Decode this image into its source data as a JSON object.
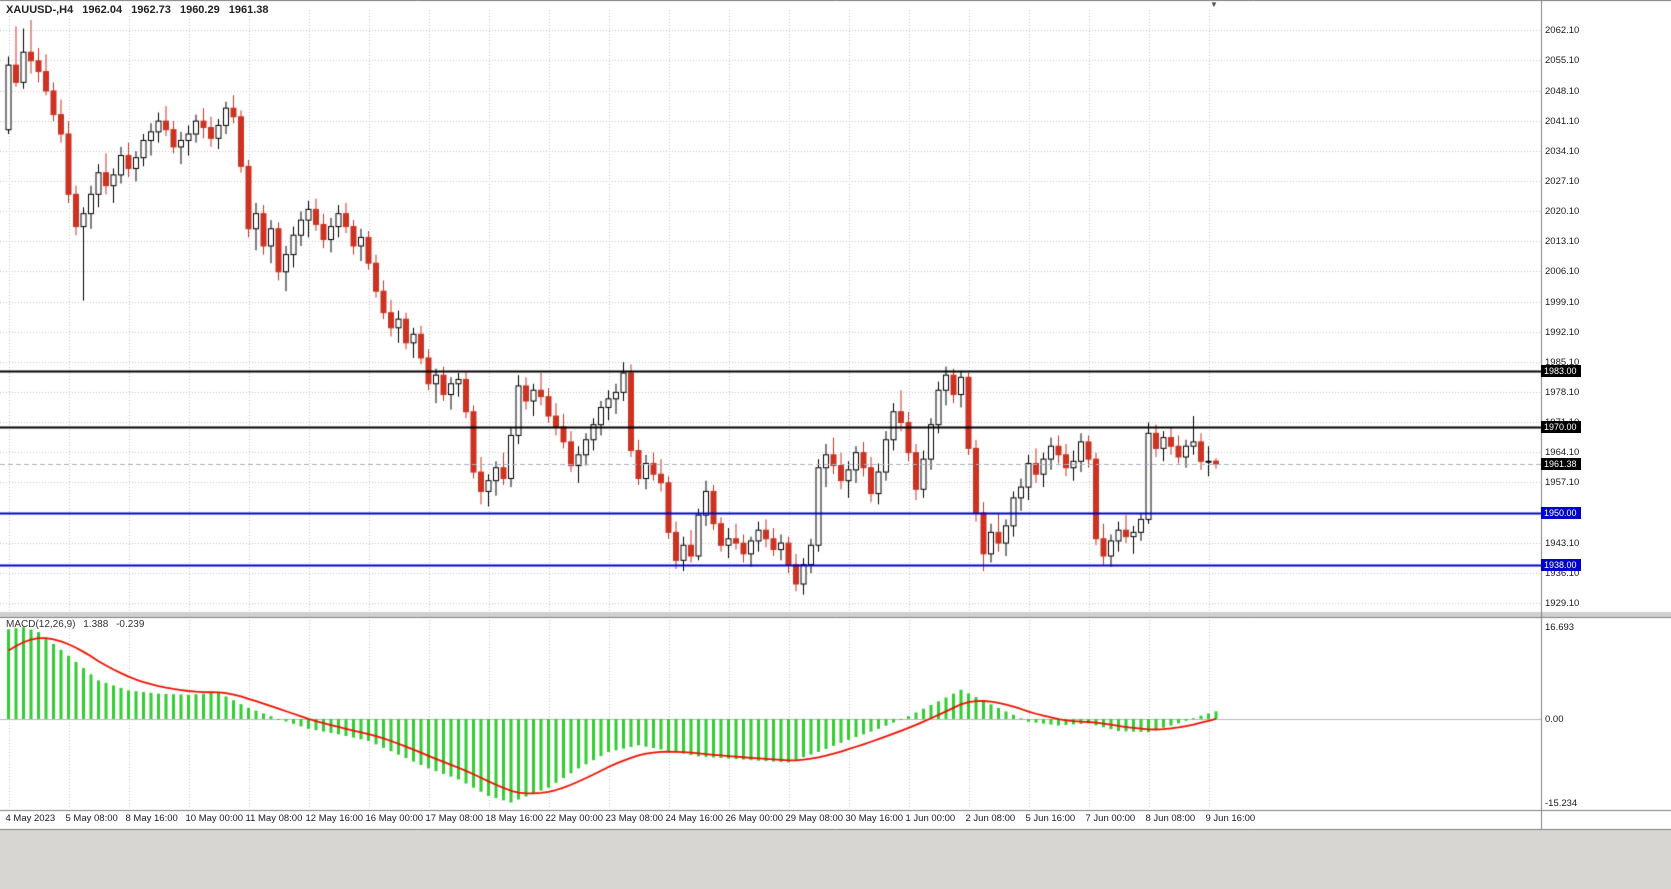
{
  "header": {
    "symbol_period": "XAUUSD-,H4",
    "open": "1962.04",
    "high": "1962.73",
    "low": "1960.29",
    "close": "1961.38"
  },
  "icons": {
    "shift_marker": "▼"
  },
  "price_axis": {
    "ticks": [
      2062.1,
      2055.1,
      2048.1,
      2041.1,
      2034.1,
      2027.1,
      2020.1,
      2013.1,
      2006.1,
      1999.1,
      1992.1,
      1985.1,
      1978.1,
      1971.1,
      1964.1,
      1957.1,
      1950.1,
      1943.1,
      1936.1,
      1929.1
    ]
  },
  "time_axis": {
    "labels": [
      {
        "text": "4 May 2023",
        "bar": 0
      },
      {
        "text": "5 May 08:00",
        "bar": 8
      },
      {
        "text": "8 May 16:00",
        "bar": 16
      },
      {
        "text": "10 May 00:00",
        "bar": 24
      },
      {
        "text": "11 May 08:00",
        "bar": 32
      },
      {
        "text": "12 May 16:00",
        "bar": 40
      },
      {
        "text": "16 May 00:00",
        "bar": 48
      },
      {
        "text": "17 May 08:00",
        "bar": 56
      },
      {
        "text": "18 May 16:00",
        "bar": 64
      },
      {
        "text": "22 May 00:00",
        "bar": 72
      },
      {
        "text": "23 May 08:00",
        "bar": 80
      },
      {
        "text": "24 May 16:00",
        "bar": 88
      },
      {
        "text": "26 May 00:00",
        "bar": 96
      },
      {
        "text": "29 May 08:00",
        "bar": 104
      },
      {
        "text": "30 May 16:00",
        "bar": 112
      },
      {
        "text": "1 Jun 00:00",
        "bar": 120
      },
      {
        "text": "2 Jun 08:00",
        "bar": 128
      },
      {
        "text": "5 Jun 16:00",
        "bar": 136
      },
      {
        "text": "7 Jun 00:00",
        "bar": 144
      },
      {
        "text": "8 Jun 08:00",
        "bar": 152
      },
      {
        "text": "9 Jun 16:00",
        "bar": 160
      }
    ]
  },
  "levels": [
    {
      "name": "resistance-line-1983",
      "price": 1983.0,
      "label": "1983.00",
      "color": "#000000",
      "badge_color": "#000000",
      "width": 2,
      "style": "solid"
    },
    {
      "name": "resistance-line-1970",
      "price": 1970.0,
      "label": "1970.00",
      "color": "#000000",
      "badge_color": "#000000",
      "width": 2,
      "style": "solid"
    },
    {
      "name": "bid-price-line",
      "price": 1961.38,
      "label": "1961.38",
      "color": "#a9b0c3",
      "badge_color": "#000000",
      "width": 1,
      "style": "dash"
    },
    {
      "name": "support-line-1950",
      "price": 1950.0,
      "label": "1950.00",
      "color": "#0000cc",
      "badge_color": "#0000cc",
      "width": 2,
      "style": "solid"
    },
    {
      "name": "support-line-1938",
      "price": 1938.0,
      "label": "1938.00",
      "color": "#0000cc",
      "badge_color": "#0000cc",
      "width": 2,
      "style": "solid"
    }
  ],
  "indicator": {
    "name": "MACD(12,26,9)",
    "macd_value": "1.388",
    "signal_value": "-0.239",
    "axis_ticks": [
      {
        "label": "16.693",
        "value": 16.693
      },
      {
        "label": "0.00",
        "value": 0
      },
      {
        "label": "-15.234",
        "value": -15.234
      }
    ],
    "signal_seed": 11.5,
    "signal_k": 0.2
  },
  "colors": {
    "background": "#ffffff",
    "grid": "#c6c6c6",
    "bull_body": "#ffffff",
    "bull_border": "#000000",
    "bear": "#cc3322",
    "histogram": "#33cc33",
    "signal_line": "#ee1100",
    "axis_text": "#1a1a1a",
    "frame": "#808080",
    "separator": "#d0d0d0",
    "bottom_strip": "#d8d6d2"
  },
  "chart_data": {
    "type": "candlestick",
    "symbol": "XAUUSD-",
    "timeframe": "H4",
    "price_range": [
      1927.0,
      2066.8
    ],
    "macd_range": [
      -16.2,
      18.0
    ],
    "candles": [
      [
        2039,
        2056,
        2038,
        2054
      ],
      [
        2054,
        2063,
        2049,
        2050
      ],
      [
        2050,
        2062.5,
        2048.5,
        2057
      ],
      [
        2057,
        2064.5,
        2052,
        2055
      ],
      [
        2055,
        2058,
        2050,
        2052.5
      ],
      [
        2052.5,
        2056.5,
        2047,
        2048
      ],
      [
        2048,
        2050,
        2041,
        2042.5
      ],
      [
        2042.5,
        2046,
        2036,
        2038
      ],
      [
        2038,
        2041,
        2022,
        2024
      ],
      [
        2024,
        2026,
        2014.5,
        2016.5
      ],
      [
        2016.5,
        2021,
        1999.3,
        2019.5
      ],
      [
        2019.5,
        2026,
        2016,
        2024
      ],
      [
        2024,
        2031,
        2021,
        2029
      ],
      [
        2029,
        2033.5,
        2024,
        2026
      ],
      [
        2026,
        2030,
        2022,
        2028.5
      ],
      [
        2028.5,
        2035,
        2026.5,
        2033
      ],
      [
        2033,
        2036,
        2028,
        2030
      ],
      [
        2030,
        2034,
        2027,
        2032.5
      ],
      [
        2032.5,
        2038,
        2030.5,
        2036.5
      ],
      [
        2036.5,
        2040.5,
        2033,
        2038.5
      ],
      [
        2038.5,
        2043,
        2036,
        2041
      ],
      [
        2041,
        2044.5,
        2037.5,
        2039
      ],
      [
        2039,
        2041,
        2033.5,
        2035
      ],
      [
        2035,
        2038.5,
        2031,
        2036.5
      ],
      [
        2036.5,
        2040,
        2033,
        2038
      ],
      [
        2038,
        2042.5,
        2036,
        2041
      ],
      [
        2041,
        2044,
        2037,
        2039.5
      ],
      [
        2039.5,
        2042,
        2035,
        2037
      ],
      [
        2037,
        2041.5,
        2034.5,
        2040
      ],
      [
        2040,
        2045.5,
        2038,
        2044
      ],
      [
        2044,
        2047,
        2040.5,
        2042
      ],
      [
        2042,
        2043.5,
        2029,
        2030.5
      ],
      [
        2030.5,
        2032,
        2014,
        2016
      ],
      [
        2016,
        2022,
        2011,
        2019.5
      ],
      [
        2019.5,
        2021.5,
        2010,
        2012
      ],
      [
        2012,
        2018,
        2008,
        2016
      ],
      [
        2016,
        2017.5,
        2004,
        2006
      ],
      [
        2006,
        2012,
        2001.5,
        2010
      ],
      [
        2010,
        2016.5,
        2007,
        2014.5
      ],
      [
        2014.5,
        2020,
        2012,
        2018
      ],
      [
        2018,
        2022.5,
        2014,
        2020.5
      ],
      [
        2020.5,
        2023,
        2015.5,
        2017
      ],
      [
        2017,
        2019.5,
        2011.5,
        2013.5
      ],
      [
        2013.5,
        2018.5,
        2010.5,
        2016.5
      ],
      [
        2016.5,
        2021.5,
        2014,
        2019.5
      ],
      [
        2019.5,
        2022,
        2015,
        2016.5
      ],
      [
        2016.5,
        2018,
        2010,
        2012
      ],
      [
        2012,
        2016,
        2008.5,
        2014
      ],
      [
        2014,
        2015.5,
        2006.5,
        2008
      ],
      [
        2008,
        2010,
        2000,
        2001.5
      ],
      [
        2001.5,
        2004,
        1995,
        1996.5
      ],
      [
        1996.5,
        1999.5,
        1991,
        1993
      ],
      [
        1993,
        1997,
        1989.5,
        1995
      ],
      [
        1995,
        1996.5,
        1988,
        1989.5
      ],
      [
        1989.5,
        1993,
        1986,
        1991.5
      ],
      [
        1991.5,
        1993.5,
        1984.5,
        1986
      ],
      [
        1986,
        1988,
        1978.5,
        1980
      ],
      [
        1980,
        1983.5,
        1975.5,
        1982
      ],
      [
        1982,
        1984,
        1976,
        1977.5
      ],
      [
        1977.5,
        1981.5,
        1974,
        1980
      ],
      [
        1980,
        1982.5,
        1977,
        1981
      ],
      [
        1981,
        1983,
        1972,
        1973.5
      ],
      [
        1973.5,
        1975,
        1958,
        1959.5
      ],
      [
        1959.5,
        1963,
        1952,
        1955
      ],
      [
        1955,
        1959,
        1951.5,
        1957.5
      ],
      [
        1957.5,
        1962,
        1954,
        1960.5
      ],
      [
        1960.5,
        1964,
        1956.5,
        1958
      ],
      [
        1958,
        1970,
        1956,
        1968
      ],
      [
        1968,
        1982,
        1966,
        1979.5
      ],
      [
        1979.5,
        1981.5,
        1974,
        1976
      ],
      [
        1976,
        1980,
        1972.5,
        1978.5
      ],
      [
        1978.5,
        1982.5,
        1975,
        1977
      ],
      [
        1977,
        1979,
        1971,
        1972.5
      ],
      [
        1972.5,
        1975.5,
        1968,
        1970
      ],
      [
        1970,
        1973,
        1965,
        1966.5
      ],
      [
        1966.5,
        1969,
        1959.5,
        1961
      ],
      [
        1961,
        1965.5,
        1957,
        1963.5
      ],
      [
        1963.5,
        1968.5,
        1961,
        1967
      ],
      [
        1967,
        1972,
        1964.5,
        1970.5
      ],
      [
        1970.5,
        1976,
        1968,
        1974.5
      ],
      [
        1974.5,
        1978.5,
        1971.5,
        1976.5
      ],
      [
        1976.5,
        1980,
        1973,
        1978
      ],
      [
        1978,
        1985,
        1976,
        1982.5
      ],
      [
        1982.5,
        1984.5,
        1963,
        1964.5
      ],
      [
        1964.5,
        1967,
        1956.5,
        1958
      ],
      [
        1958,
        1963.5,
        1955.5,
        1961.5
      ],
      [
        1961.5,
        1964,
        1957.5,
        1959
      ],
      [
        1959,
        1962.5,
        1955,
        1957
      ],
      [
        1957,
        1958.5,
        1944,
        1945.5
      ],
      [
        1945.5,
        1948,
        1937,
        1939
      ],
      [
        1939,
        1944.5,
        1936.5,
        1942.5
      ],
      [
        1942.5,
        1946,
        1938.5,
        1940
      ],
      [
        1940,
        1951,
        1939,
        1949.5
      ],
      [
        1949.5,
        1957.5,
        1947,
        1955
      ],
      [
        1955,
        1956.5,
        1946,
        1947.5
      ],
      [
        1947.5,
        1949,
        1941,
        1942.5
      ],
      [
        1942.5,
        1946.5,
        1939.5,
        1944
      ],
      [
        1944,
        1947.5,
        1941.5,
        1943
      ],
      [
        1943,
        1945,
        1938.5,
        1940.5
      ],
      [
        1940.5,
        1944.5,
        1937.5,
        1943.5
      ],
      [
        1943.5,
        1948,
        1941,
        1946
      ],
      [
        1946,
        1948.5,
        1942,
        1944
      ],
      [
        1944,
        1946.5,
        1940,
        1941.5
      ],
      [
        1941.5,
        1945,
        1939,
        1943
      ],
      [
        1943,
        1944.5,
        1936,
        1938
      ],
      [
        1938,
        1940.5,
        1931.8,
        1933.5
      ],
      [
        1933.5,
        1939.5,
        1931,
        1938
      ],
      [
        1938,
        1944,
        1936,
        1942.5
      ],
      [
        1942.5,
        1962.5,
        1941,
        1960.5
      ],
      [
        1960.5,
        1966,
        1956,
        1963.5
      ],
      [
        1963.5,
        1967.5,
        1959,
        1961
      ],
      [
        1961,
        1964,
        1955.5,
        1957.5
      ],
      [
        1957.5,
        1962,
        1953.5,
        1960
      ],
      [
        1960,
        1965.5,
        1957,
        1964
      ],
      [
        1964,
        1966.5,
        1958.5,
        1960.5
      ],
      [
        1960.5,
        1963,
        1952.5,
        1954.5
      ],
      [
        1954.5,
        1961.5,
        1952,
        1959.5
      ],
      [
        1959.5,
        1969,
        1957.5,
        1967
      ],
      [
        1967,
        1975.5,
        1964.5,
        1973.5
      ],
      [
        1973.5,
        1978.5,
        1969,
        1971
      ],
      [
        1971,
        1973.5,
        1962,
        1964
      ],
      [
        1964,
        1966,
        1953,
        1955.5
      ],
      [
        1955.5,
        1964.5,
        1953.5,
        1962.5
      ],
      [
        1962.5,
        1972,
        1960,
        1970.5
      ],
      [
        1970.5,
        1980.5,
        1968.5,
        1978.5
      ],
      [
        1978.5,
        1984,
        1975,
        1982
      ],
      [
        1982,
        1983.5,
        1975.5,
        1977.5
      ],
      [
        1977.5,
        1983,
        1974.5,
        1981.5
      ],
      [
        1981.5,
        1982.5,
        1963.5,
        1965
      ],
      [
        1965,
        1967,
        1948,
        1950
      ],
      [
        1950,
        1952.5,
        1936.5,
        1940.5
      ],
      [
        1940.5,
        1947.5,
        1938.5,
        1945.5
      ],
      [
        1945.5,
        1950,
        1941,
        1943
      ],
      [
        1943,
        1948.5,
        1940,
        1947
      ],
      [
        1947,
        1955,
        1944.5,
        1953.5
      ],
      [
        1953.5,
        1958,
        1950.5,
        1956
      ],
      [
        1956,
        1963.5,
        1953,
        1961.5
      ],
      [
        1961.5,
        1965,
        1957,
        1959
      ],
      [
        1959,
        1964,
        1956,
        1962.5
      ],
      [
        1962.5,
        1967.5,
        1960,
        1965.5
      ],
      [
        1965.5,
        1968,
        1961.5,
        1963.5
      ],
      [
        1963.5,
        1966,
        1958.5,
        1960.5
      ],
      [
        1960.5,
        1964.5,
        1957.5,
        1962
      ],
      [
        1962,
        1968.5,
        1959.5,
        1966.5
      ],
      [
        1966.5,
        1968,
        1960.5,
        1962.5
      ],
      [
        1962.5,
        1964,
        1942.5,
        1944
      ],
      [
        1944,
        1947.5,
        1938,
        1940
      ],
      [
        1940,
        1945,
        1937.5,
        1943.5
      ],
      [
        1943.5,
        1948,
        1941,
        1946
      ],
      [
        1946,
        1949.5,
        1943,
        1944.5
      ],
      [
        1944.5,
        1947,
        1940.5,
        1945.5
      ],
      [
        1945.5,
        1950,
        1943.5,
        1948.5
      ],
      [
        1948.5,
        1971,
        1947.5,
        1968.5
      ],
      [
        1968.5,
        1970.5,
        1963,
        1965
      ],
      [
        1965,
        1969,
        1962,
        1967.5
      ],
      [
        1967.5,
        1970,
        1963.5,
        1965.5
      ],
      [
        1965.5,
        1968,
        1961.5,
        1963
      ],
      [
        1963,
        1967,
        1960.5,
        1965.5
      ],
      [
        1965.5,
        1972.5,
        1963.5,
        1966.5
      ],
      [
        1966.5,
        1968.5,
        1960,
        1962
      ],
      [
        1962,
        1965.5,
        1958.5,
        1962
      ],
      [
        1962.04,
        1962.73,
        1960.29,
        1961.38
      ]
    ],
    "macd_checkpoints": [
      [
        0,
        16.3
      ],
      [
        2,
        16.7
      ],
      [
        4,
        15.8
      ],
      [
        8,
        11.5
      ],
      [
        12,
        7.0
      ],
      [
        16,
        5.2
      ],
      [
        20,
        4.6
      ],
      [
        24,
        4.4
      ],
      [
        28,
        4.8
      ],
      [
        32,
        2.0
      ],
      [
        36,
        0.0
      ],
      [
        40,
        -1.8
      ],
      [
        44,
        -2.8
      ],
      [
        48,
        -4.0
      ],
      [
        52,
        -6.5
      ],
      [
        56,
        -9.0
      ],
      [
        60,
        -11.0
      ],
      [
        64,
        -14.0
      ],
      [
        67,
        -15.2
      ],
      [
        72,
        -12.5
      ],
      [
        76,
        -9.0
      ],
      [
        80,
        -6.0
      ],
      [
        84,
        -4.8
      ],
      [
        88,
        -5.8
      ],
      [
        92,
        -6.8
      ],
      [
        96,
        -7.2
      ],
      [
        100,
        -7.6
      ],
      [
        104,
        -7.9
      ],
      [
        108,
        -6.0
      ],
      [
        112,
        -3.8
      ],
      [
        116,
        -1.8
      ],
      [
        120,
        0.5
      ],
      [
        124,
        3.2
      ],
      [
        127,
        5.3
      ],
      [
        132,
        2.0
      ],
      [
        136,
        -0.5
      ],
      [
        140,
        -1.2
      ],
      [
        144,
        -0.8
      ],
      [
        148,
        -2.2
      ],
      [
        152,
        -2.4
      ],
      [
        156,
        -0.8
      ],
      [
        159,
        0.6
      ],
      [
        161,
        1.39
      ]
    ]
  }
}
